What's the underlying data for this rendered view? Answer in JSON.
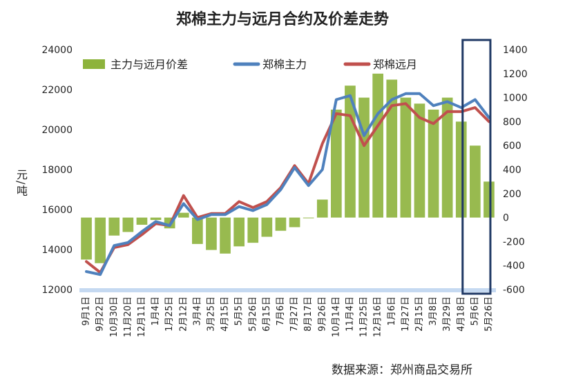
{
  "chart_data": {
    "title": "郑棉主力与远月合约及价差走势",
    "source": "数据来源：郑州商品交易所",
    "ylabel_left": "元/吨",
    "type": "line+bar",
    "y_left": {
      "min": 12000,
      "max": 24000,
      "ticks": [
        12000,
        14000,
        16000,
        18000,
        20000,
        22000,
        24000
      ]
    },
    "y_right": {
      "min": -600,
      "max": 1400,
      "ticks": [
        -600,
        -400,
        -200,
        0,
        200,
        400,
        600,
        800,
        1000,
        1200,
        1400
      ]
    },
    "x_tick_labels": [
      "9月1日",
      "9月22日",
      "10月30日",
      "11月20日",
      "12月11日",
      "1月4日",
      "1月25日",
      "2月12日",
      "3月4日",
      "3月25日",
      "4月15日",
      "5月5日",
      "5月26日",
      "6月15日",
      "7月6日",
      "7月27日",
      "8月17日",
      "9月26日",
      "10月14日",
      "11月4日",
      "11月25日",
      "12月16日",
      "1月6日",
      "1月27日",
      "2月15日",
      "3月8日",
      "3月29日",
      "4月18日",
      "5月6日",
      "5月26日"
    ],
    "legend": [
      {
        "name": "主力与远月价差",
        "color": "#8DB33C",
        "kind": "bar"
      },
      {
        "name": "郑棉主力",
        "color": "#4F81BD",
        "kind": "line"
      },
      {
        "name": "郑棉远月",
        "color": "#C0504D",
        "kind": "line"
      }
    ],
    "highlight_box": {
      "from_index": 27.6,
      "to_index": 29.6,
      "color": "#1F3864"
    },
    "series": [
      {
        "name": "郑棉主力",
        "values": [
          12900,
          12750,
          14200,
          14350,
          14900,
          15400,
          15200,
          16300,
          15500,
          15750,
          15750,
          16150,
          15950,
          16250,
          17000,
          18100,
          17200,
          18000,
          21500,
          21700,
          19700,
          20800,
          21500,
          21800,
          21800,
          21200,
          21400,
          21100,
          21500,
          20600
        ]
      },
      {
        "name": "郑棉远月",
        "values": [
          13400,
          12850,
          14100,
          14250,
          14750,
          15300,
          15200,
          16700,
          15600,
          15800,
          15800,
          16400,
          16100,
          16400,
          17100,
          18200,
          17300,
          19300,
          20800,
          20700,
          19200,
          20200,
          21200,
          21300,
          20600,
          20300,
          20900,
          20900,
          21100,
          20400
        ]
      },
      {
        "name": "主力与远月价差",
        "values": [
          -350,
          -380,
          -150,
          -120,
          -60,
          -20,
          -90,
          40,
          -220,
          -270,
          -300,
          -240,
          -210,
          -160,
          -110,
          -80,
          0,
          150,
          900,
          1100,
          1000,
          1200,
          1150,
          1000,
          950,
          900,
          1000,
          800,
          600,
          300
        ]
      }
    ]
  }
}
